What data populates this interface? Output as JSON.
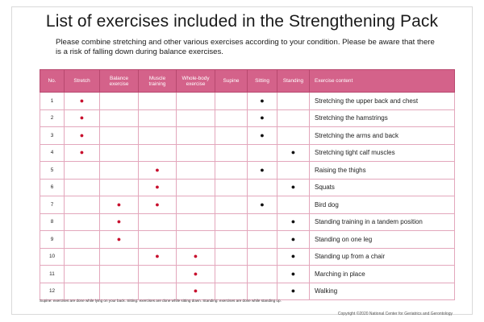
{
  "title": "List of exercises included in the Strengthening Pack",
  "intro": "Please combine stretching and other various exercises according to your condition. Please be aware that there is a risk of falling down during balance exercises.",
  "columns": {
    "no": "No.",
    "stretch": "Stretch",
    "balance": "Balance exercise",
    "muscle": "Muscle training",
    "wholebody": "Whole-body exercise",
    "supine": "Supine",
    "sitting": "Sitting",
    "standing": "Standing",
    "content": "Exercise content"
  },
  "dot_glyph": "●",
  "colors": {
    "header_bg": "#d4628a",
    "category_dot": "#c8102e",
    "position_dot": "#111111",
    "grid": "#e3a7bc"
  },
  "rows": [
    {
      "no": "1",
      "stretch": true,
      "balance": false,
      "muscle": false,
      "wholebody": false,
      "supine": false,
      "sitting": true,
      "standing": false,
      "content": "Stretching the upper back and chest"
    },
    {
      "no": "2",
      "stretch": true,
      "balance": false,
      "muscle": false,
      "wholebody": false,
      "supine": false,
      "sitting": true,
      "standing": false,
      "content": "Stretching the hamstrings"
    },
    {
      "no": "3",
      "stretch": true,
      "balance": false,
      "muscle": false,
      "wholebody": false,
      "supine": false,
      "sitting": true,
      "standing": false,
      "content": "Stretching the arms and back"
    },
    {
      "no": "4",
      "stretch": true,
      "balance": false,
      "muscle": false,
      "wholebody": false,
      "supine": false,
      "sitting": false,
      "standing": true,
      "content": "Stretching tight calf muscles"
    },
    {
      "no": "5",
      "stretch": false,
      "balance": false,
      "muscle": true,
      "wholebody": false,
      "supine": false,
      "sitting": true,
      "standing": false,
      "content": "Raising the thighs"
    },
    {
      "no": "6",
      "stretch": false,
      "balance": false,
      "muscle": true,
      "wholebody": false,
      "supine": false,
      "sitting": false,
      "standing": true,
      "content": "Squats"
    },
    {
      "no": "7",
      "stretch": false,
      "balance": true,
      "muscle": true,
      "wholebody": false,
      "supine": false,
      "sitting": true,
      "standing": false,
      "content": "Bird dog"
    },
    {
      "no": "8",
      "stretch": false,
      "balance": true,
      "muscle": false,
      "wholebody": false,
      "supine": false,
      "sitting": false,
      "standing": true,
      "content": "Standing training in a tandem position"
    },
    {
      "no": "9",
      "stretch": false,
      "balance": true,
      "muscle": false,
      "wholebody": false,
      "supine": false,
      "sitting": false,
      "standing": true,
      "content": "Standing on one leg"
    },
    {
      "no": "10",
      "stretch": false,
      "balance": false,
      "muscle": true,
      "wholebody": true,
      "supine": false,
      "sitting": false,
      "standing": true,
      "content": "Standing up from a chair"
    },
    {
      "no": "11",
      "stretch": false,
      "balance": false,
      "muscle": false,
      "wholebody": true,
      "supine": false,
      "sitting": false,
      "standing": true,
      "content": "Marching in place"
    },
    {
      "no": "12",
      "stretch": false,
      "balance": false,
      "muscle": false,
      "wholebody": true,
      "supine": false,
      "sitting": false,
      "standing": true,
      "content": "Walking"
    }
  ],
  "footnote": "Supine: exercises are done while lying on your back. Sitting: exercises are done while sitting down. Standing: exercises are done while standing up.",
  "copyright": "Copyright ©2020 National Center for Geriatrics and Gerontology"
}
